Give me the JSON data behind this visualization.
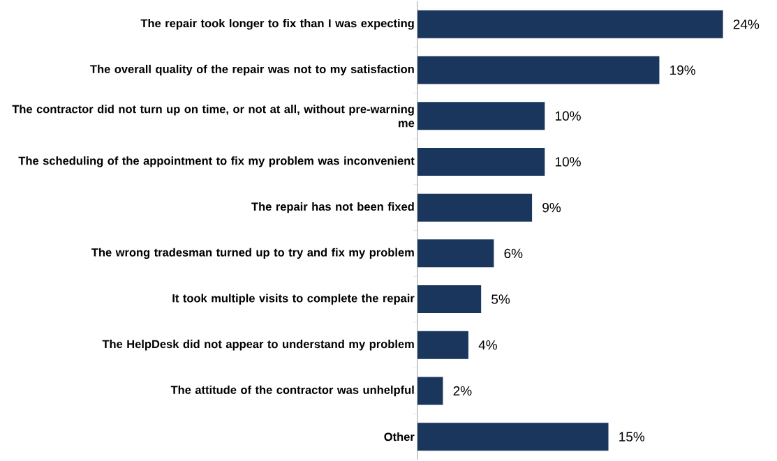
{
  "chart_data": {
    "type": "bar",
    "orientation": "horizontal",
    "categories": [
      "The repair took longer to fix than I was expecting",
      "The overall quality of the repair was not to my satisfaction",
      "The contractor did not turn up on time, or not at all, without pre-warning me",
      "The scheduling of the appointment to fix my problem was inconvenient",
      "The repair has not been fixed",
      "The wrong tradesman turned up to try and fix my problem",
      "It took multiple visits to complete the repair",
      "The HelpDesk did not appear to understand my problem",
      "The attitude of the contractor was unhelpful",
      "Other"
    ],
    "values": [
      24,
      19,
      10,
      10,
      9,
      6,
      5,
      4,
      2,
      15
    ],
    "value_labels": [
      "24%",
      "19%",
      "10%",
      "10%",
      "9%",
      "6%",
      "5%",
      "4%",
      "2%",
      "15%"
    ],
    "color": "#1a365d"
  }
}
